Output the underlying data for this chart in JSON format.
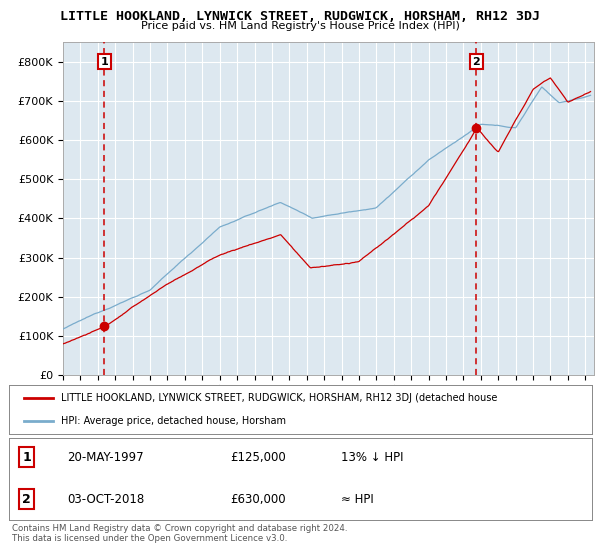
{
  "title1": "LITTLE HOOKLAND, LYNWICK STREET, RUDGWICK, HORSHAM, RH12 3DJ",
  "title2": "Price paid vs. HM Land Registry's House Price Index (HPI)",
  "ylabel_ticks": [
    "£0",
    "£100K",
    "£200K",
    "£300K",
    "£400K",
    "£500K",
    "£600K",
    "£700K",
    "£800K"
  ],
  "ylim": [
    0,
    850000
  ],
  "xlim_start": 1995.0,
  "xlim_end": 2025.5,
  "sale1_year": 1997.38,
  "sale1_price": 125000,
  "sale2_year": 2018.75,
  "sale2_price": 630000,
  "sale1_label": "1",
  "sale2_label": "2",
  "legend_line1": "LITTLE HOOKLAND, LYNWICK STREET, RUDGWICK, HORSHAM, RH12 3DJ (detached house",
  "legend_line2": "HPI: Average price, detached house, Horsham",
  "table_row1": [
    "1",
    "20-MAY-1997",
    "£125,000",
    "13% ↓ HPI"
  ],
  "table_row2": [
    "2",
    "03-OCT-2018",
    "£630,000",
    "≈ HPI"
  ],
  "footer": "Contains HM Land Registry data © Crown copyright and database right 2024.\nThis data is licensed under the Open Government Licence v3.0.",
  "color_red": "#cc0000",
  "color_blue": "#7aaccc",
  "color_bg": "#dde8f0",
  "color_grid": "#ffffff",
  "color_dashed": "#cc0000"
}
